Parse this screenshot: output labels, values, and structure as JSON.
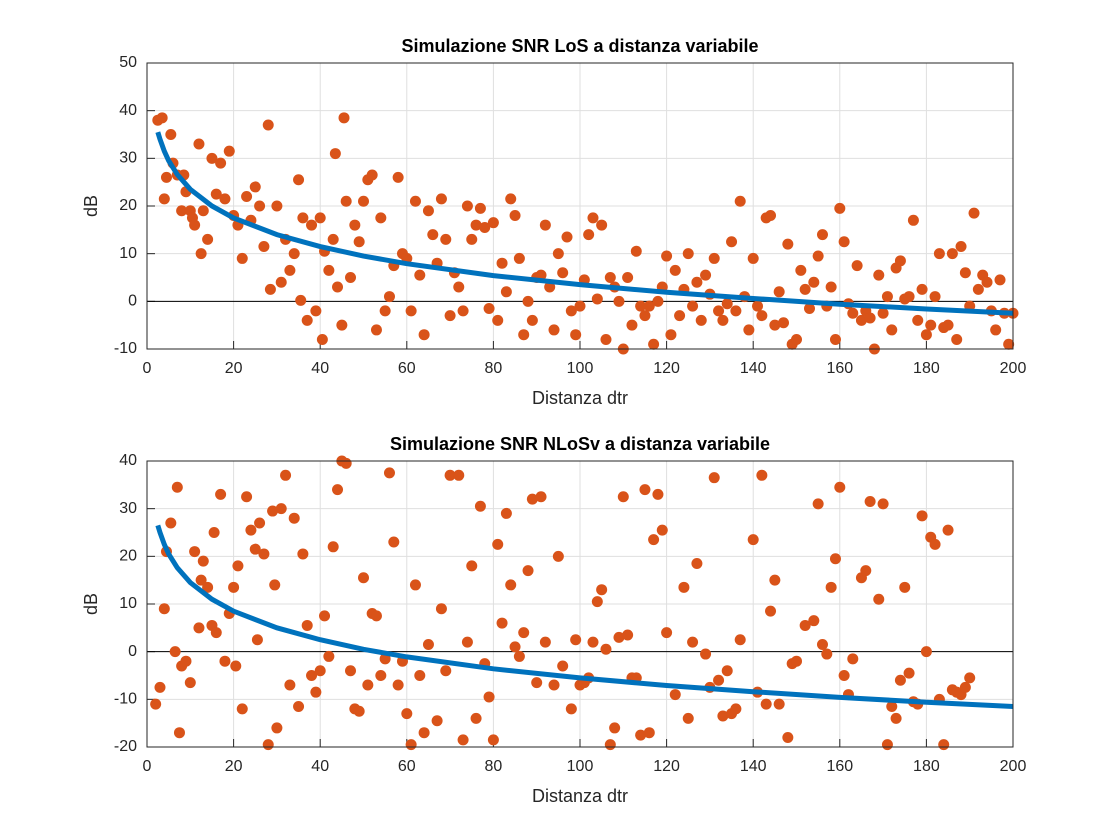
{
  "chart_data": [
    {
      "type": "scatter",
      "title": "Simulazione SNR LoS a distanza variabile",
      "x_label": "Distanza dtr",
      "y_label": "dB",
      "xlim": [
        0,
        200
      ],
      "xticks": [
        0,
        20,
        40,
        60,
        80,
        100,
        120,
        140,
        160,
        180,
        200
      ],
      "ylim": [
        -10,
        50
      ],
      "yticks": [
        -10,
        0,
        10,
        20,
        30,
        40,
        50
      ],
      "grid": true,
      "hline": 0,
      "series": [
        {
          "type": "scatter",
          "color": "#D95319",
          "x": [
            2.5,
            3.5,
            4,
            4.5,
            5.5,
            6,
            7,
            8,
            8.5,
            9,
            10,
            10.5,
            11,
            12,
            12.5,
            13,
            14,
            15,
            16,
            17,
            18,
            19,
            20,
            21,
            22,
            23,
            24,
            25,
            26,
            27,
            28,
            28.5,
            30,
            31,
            32,
            33,
            34,
            35,
            35.5,
            36,
            37,
            38,
            39,
            40,
            40.5,
            41,
            42,
            43,
            43.5,
            44,
            45,
            45.5,
            46,
            47,
            48,
            49,
            50,
            51,
            52,
            53,
            54,
            55,
            56,
            57,
            58,
            59,
            60,
            61,
            62,
            63,
            64,
            65,
            66,
            67,
            68,
            69,
            70,
            71,
            72,
            73,
            74,
            75,
            76,
            77,
            78,
            79,
            80,
            81,
            82,
            83,
            84,
            85,
            86,
            87,
            88,
            89,
            90,
            91,
            92,
            93,
            94,
            95,
            96,
            97,
            98,
            99,
            100,
            101,
            102,
            103,
            104,
            105,
            106,
            107,
            108,
            109,
            110,
            111,
            112,
            113,
            114,
            115,
            116,
            117,
            118,
            119,
            120,
            121,
            122,
            123,
            124,
            125,
            126,
            127,
            128,
            129,
            130,
            131,
            132,
            133,
            134,
            135,
            136,
            137,
            138,
            139,
            140,
            141,
            142,
            143,
            144,
            145,
            146,
            147,
            148,
            149,
            150,
            151,
            152,
            153,
            154,
            155,
            156,
            157,
            158,
            159,
            160,
            161,
            162,
            163,
            164,
            165,
            166,
            167,
            168,
            169,
            170,
            171,
            172,
            173,
            174,
            175,
            176,
            177,
            178,
            179,
            180,
            181,
            182,
            183,
            184,
            185,
            186,
            187,
            188,
            189,
            190,
            191,
            192,
            193,
            194,
            195,
            196,
            197,
            198,
            199,
            200
          ],
          "values": [
            38,
            38.5,
            21.5,
            26,
            35,
            29,
            26.5,
            19,
            26.5,
            23,
            19,
            17.5,
            16,
            33,
            10,
            19,
            13,
            30,
            22.5,
            29,
            21.5,
            31.5,
            18,
            16,
            9,
            22,
            17,
            24,
            20,
            11.5,
            37,
            2.5,
            20,
            4,
            13,
            6.5,
            10,
            25.5,
            0.2,
            17.5,
            -4,
            16,
            -2,
            17.5,
            -8,
            10.5,
            6.5,
            13,
            31,
            3,
            -5,
            38.5,
            21,
            5,
            16,
            12.5,
            21,
            25.5,
            26.5,
            -6,
            17.5,
            -2,
            1,
            7.5,
            26,
            10,
            9,
            -2,
            21,
            5.5,
            -7,
            19,
            14,
            8,
            21.5,
            13,
            -3,
            6,
            3,
            -2,
            20,
            13,
            16,
            19.5,
            15.5,
            -1.5,
            16.5,
            -4,
            8,
            2,
            21.5,
            18,
            9,
            -7,
            0,
            -4,
            5,
            5.5,
            16,
            3,
            -6,
            10,
            6,
            13.5,
            -2,
            -7,
            -1,
            4.5,
            14,
            17.5,
            0.5,
            16,
            -8,
            5,
            3,
            0,
            -10,
            5,
            -5,
            10.5,
            -1,
            -3,
            -1,
            -9,
            0,
            3,
            9.5,
            -7,
            6.5,
            -3,
            2.5,
            10,
            -1,
            4,
            -4,
            5.5,
            1.5,
            9,
            -2,
            -4,
            -0.5,
            12.5,
            -2,
            21,
            1,
            -6,
            9,
            -1,
            -3,
            17.5,
            18,
            -5,
            2,
            -4.5,
            12,
            -9,
            -8,
            6.5,
            2.5,
            -1.5,
            4,
            9.5,
            14,
            -1,
            3,
            -8,
            19.5,
            12.5,
            -0.5,
            -2.5,
            7.5,
            -4,
            -2,
            -3.5,
            -10,
            5.5,
            -2.5,
            1,
            -6,
            7,
            8.5,
            0.5,
            1,
            17,
            -4,
            2.5,
            -7,
            -5,
            1,
            10,
            -5.5,
            -5,
            10,
            -8,
            11.5,
            6,
            -1,
            18.5,
            2.5,
            5.5,
            4,
            -2,
            -6,
            4.5,
            -2.5,
            -9,
            -2.5
          ]
        },
        {
          "type": "line",
          "color": "#0072BD",
          "x": [
            2.5,
            3,
            4,
            5,
            7,
            10,
            15,
            20,
            30,
            40,
            50,
            60,
            80,
            100,
            120,
            140,
            160,
            180,
            200
          ],
          "values": [
            35.5,
            34,
            31.5,
            29.5,
            26.6,
            23.5,
            20,
            17.5,
            14,
            11.5,
            9.5,
            7.9,
            5.4,
            3.5,
            1.9,
            0.6,
            -0.6,
            -1.6,
            -2.5
          ]
        }
      ]
    },
    {
      "type": "scatter",
      "title": "Simulazione SNR NLoSv a distanza variabile",
      "x_label": "Distanza dtr",
      "y_label": "dB",
      "xlim": [
        0,
        200
      ],
      "xticks": [
        0,
        20,
        40,
        60,
        80,
        100,
        120,
        140,
        160,
        180,
        200
      ],
      "ylim": [
        -20,
        40
      ],
      "yticks": [
        -20,
        -10,
        0,
        10,
        20,
        30,
        40
      ],
      "grid": true,
      "hline": 0,
      "series": [
        {
          "type": "scatter",
          "color": "#D95319",
          "x": [
            2,
            3,
            4,
            4.5,
            5.5,
            6.5,
            7,
            7.5,
            8,
            9,
            10,
            11,
            12,
            12.5,
            13,
            14,
            15,
            15.5,
            16,
            17,
            18,
            19,
            20,
            20.5,
            21,
            22,
            23,
            24,
            25,
            25.5,
            26,
            27,
            28,
            29,
            29.5,
            30,
            31,
            32,
            33,
            34,
            35,
            36,
            37,
            38,
            39,
            40,
            41,
            42,
            43,
            44,
            45,
            46,
            47,
            48,
            49,
            50,
            51,
            52,
            53,
            54,
            55,
            56,
            57,
            58,
            59,
            60,
            61,
            62,
            63,
            64,
            65,
            67,
            68,
            69,
            70,
            72,
            73,
            74,
            75,
            76,
            77,
            78,
            79,
            80,
            81,
            82,
            83,
            84,
            85,
            86,
            87,
            88,
            89,
            90,
            91,
            92,
            94,
            95,
            96,
            98,
            99,
            100,
            101,
            102,
            103,
            104,
            105,
            106,
            107,
            108,
            109,
            110,
            111,
            112,
            113,
            114,
            115,
            116,
            117,
            118,
            119,
            120,
            122,
            124,
            125,
            126,
            127,
            129,
            130,
            131,
            132,
            133,
            134,
            135,
            136,
            137,
            140,
            141,
            142,
            143,
            144,
            145,
            146,
            148,
            149,
            150,
            152,
            154,
            155,
            156,
            157,
            158,
            159,
            160,
            161,
            162,
            163,
            165,
            166,
            167,
            169,
            170,
            171,
            172,
            173,
            174,
            175,
            176,
            177,
            178,
            179,
            180,
            181,
            182,
            183,
            184,
            185,
            186,
            187,
            188,
            189,
            190
          ],
          "values": [
            -11,
            -7.5,
            9,
            21,
            27,
            0,
            34.5,
            -17,
            -3,
            -2,
            -6.5,
            21,
            5,
            15,
            19,
            13.5,
            5.5,
            25,
            4,
            33,
            -2,
            8,
            13.5,
            -3,
            18,
            -12,
            32.5,
            25.5,
            21.5,
            2.5,
            27,
            20.5,
            -19.5,
            29.5,
            14,
            -16,
            30,
            37,
            -7,
            28,
            -11.5,
            20.5,
            5.5,
            -5,
            -8.5,
            -4,
            7.5,
            -1,
            22,
            34,
            40,
            39.5,
            -4,
            -12,
            -12.5,
            15.5,
            -7,
            8,
            7.5,
            -5,
            -1.5,
            37.5,
            23,
            -7,
            -2,
            -13,
            -19.5,
            14,
            -5,
            -17,
            1.5,
            -14.5,
            9,
            -4,
            37,
            37,
            -18.5,
            2,
            18,
            -14,
            30.5,
            -2.5,
            -9.5,
            -18.5,
            22.5,
            6,
            29,
            14,
            1,
            -1,
            4,
            17,
            32,
            -6.5,
            32.5,
            2,
            -7,
            20,
            -3,
            -12,
            2.5,
            -7,
            -6.5,
            -5.5,
            2,
            10.5,
            13,
            0.5,
            -19.5,
            -16,
            3,
            32.5,
            3.5,
            -5.5,
            -5.5,
            -17.5,
            34,
            -17,
            23.5,
            33,
            25.5,
            4,
            -9,
            13.5,
            -14,
            2,
            18.5,
            -0.5,
            -7.5,
            36.5,
            -6,
            -13.5,
            -4,
            -13,
            -12,
            2.5,
            23.5,
            -8.5,
            37,
            -11,
            8.5,
            15,
            -11,
            -18,
            -2.5,
            -2,
            5.5,
            6.5,
            31,
            1.5,
            -0.5,
            13.5,
            19.5,
            34.5,
            -5,
            -9,
            -1.5,
            15.5,
            17,
            31.5,
            11,
            31,
            -19.5,
            -11.5,
            -14,
            -6,
            13.5,
            -4.5,
            -10.5,
            -11,
            28.5,
            0,
            24,
            22.5,
            -10,
            -19.5,
            25.5,
            -8,
            -8.5,
            -9,
            -7.5,
            -5.5
          ]
        },
        {
          "type": "line",
          "color": "#0072BD",
          "x": [
            2.5,
            3,
            4,
            5,
            7,
            10,
            15,
            20,
            30,
            40,
            50,
            60,
            80,
            100,
            120,
            140,
            160,
            180,
            200
          ],
          "values": [
            26.5,
            25,
            22.5,
            20.5,
            17.6,
            14.5,
            11,
            8.5,
            5,
            2.5,
            0.5,
            -1.1,
            -3.6,
            -5.5,
            -7.1,
            -8.4,
            -9.6,
            -10.6,
            -11.5
          ]
        }
      ]
    }
  ]
}
